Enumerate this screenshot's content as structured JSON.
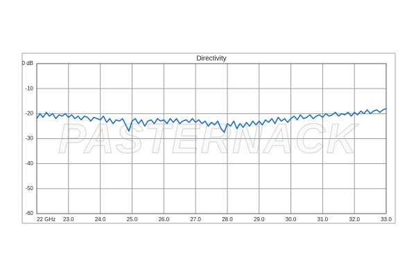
{
  "chart_data": {
    "type": "line",
    "title": "Directivity",
    "watermark": "PASTERNACK",
    "x": [
      22.0,
      22.1,
      22.2,
      22.3,
      22.4,
      22.5,
      22.6,
      22.7,
      22.8,
      22.9,
      23.0,
      23.1,
      23.2,
      23.3,
      23.4,
      23.5,
      23.6,
      23.7,
      23.8,
      23.9,
      24.0,
      24.1,
      24.2,
      24.3,
      24.4,
      24.5,
      24.6,
      24.7,
      24.8,
      24.9,
      25.0,
      25.1,
      25.2,
      25.3,
      25.4,
      25.5,
      25.6,
      25.7,
      25.8,
      25.9,
      26.0,
      26.1,
      26.2,
      26.3,
      26.4,
      26.5,
      26.6,
      26.7,
      26.8,
      26.9,
      27.0,
      27.1,
      27.2,
      27.3,
      27.4,
      27.5,
      27.6,
      27.7,
      27.8,
      27.9,
      28.0,
      28.1,
      28.2,
      28.3,
      28.4,
      28.5,
      28.6,
      28.7,
      28.8,
      28.9,
      29.0,
      29.1,
      29.2,
      29.3,
      29.4,
      29.5,
      29.6,
      29.7,
      29.8,
      29.9,
      30.0,
      30.1,
      30.2,
      30.3,
      30.4,
      30.5,
      30.6,
      30.7,
      30.8,
      30.9,
      31.0,
      31.1,
      31.2,
      31.3,
      31.4,
      31.5,
      31.6,
      31.7,
      31.8,
      31.9,
      32.0,
      32.1,
      32.2,
      32.3,
      32.4,
      32.5,
      32.6,
      32.7,
      32.8,
      32.9,
      33.0
    ],
    "values": [
      -22,
      -20,
      -21.5,
      -19.5,
      -21,
      -20,
      -22,
      -20.5,
      -21,
      -20,
      -21.5,
      -20.5,
      -22,
      -21,
      -22.5,
      -21,
      -21.5,
      -23,
      -21.5,
      -22,
      -22.5,
      -21,
      -23.5,
      -22,
      -24,
      -22.5,
      -23,
      -22,
      -24.5,
      -27,
      -23,
      -22,
      -24,
      -22.5,
      -25,
      -23,
      -22.5,
      -24,
      -22,
      -23,
      -22.5,
      -24,
      -22,
      -23.5,
      -22,
      -24,
      -23,
      -22.5,
      -23.5,
      -22,
      -23.5,
      -22.5,
      -24,
      -23,
      -25,
      -23.5,
      -24.5,
      -23,
      -26,
      -27.5,
      -24,
      -25,
      -23,
      -26,
      -24,
      -25.5,
      -23.5,
      -25,
      -23,
      -24.5,
      -23,
      -24.5,
      -22.5,
      -23.5,
      -22,
      -24,
      -21.5,
      -23,
      -22,
      -23.5,
      -22,
      -21,
      -22.5,
      -20.5,
      -22,
      -21.5,
      -20.5,
      -22,
      -21,
      -20.5,
      -21.5,
      -20,
      -21,
      -20.5,
      -19.5,
      -21,
      -20,
      -20.5,
      -19.5,
      -21,
      -19.5,
      -20.5,
      -19,
      -20,
      -18.5,
      -20,
      -19,
      -18.5,
      -19.5,
      -18.5,
      -18
    ],
    "color": "#1f6fbf",
    "xlim": [
      22,
      33
    ],
    "xticks": [
      {
        "value": 22,
        "label": "22 GHz"
      },
      {
        "value": 23,
        "label": "23.0"
      },
      {
        "value": 24,
        "label": "24.0"
      },
      {
        "value": 25,
        "label": "25.0"
      },
      {
        "value": 26,
        "label": "26.0"
      },
      {
        "value": 27,
        "label": "27.0"
      },
      {
        "value": 28,
        "label": "28.0"
      },
      {
        "value": 29,
        "label": "29.0"
      },
      {
        "value": 30,
        "label": "30.0"
      },
      {
        "value": 31,
        "label": "31.0"
      },
      {
        "value": 32,
        "label": "32.0"
      },
      {
        "value": 33,
        "label": "33.0"
      }
    ],
    "ylim": [
      -60,
      0
    ],
    "yticks": [
      {
        "value": 0,
        "label": "0 dB"
      },
      -10,
      -20,
      -30,
      -40,
      -50,
      -60
    ],
    "grid": true
  }
}
